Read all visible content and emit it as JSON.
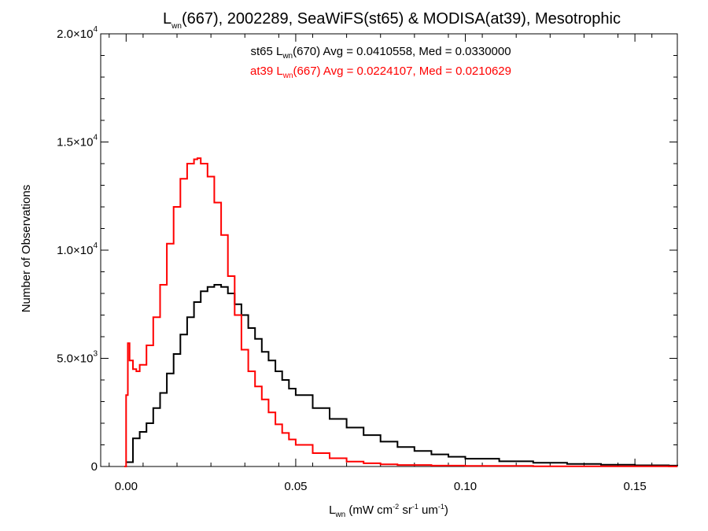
{
  "chart_data": {
    "type": "line",
    "title": {
      "main": "L",
      "main_sub": "wn",
      "rest": "(667), 2002289, SeaWiFS(st65) & MODISA(at39), Mesotrophic"
    },
    "annotations": [
      {
        "prefix": "st65 L",
        "sub": "wn",
        "suffix": "(670) Avg = 0.0410558, Med = 0.0330000",
        "color": "#000000"
      },
      {
        "prefix": "at39 L",
        "sub": "wn",
        "suffix": "(667) Avg = 0.0224107, Med = 0.0210629",
        "color": "#ff0000"
      }
    ],
    "xlabel": {
      "l": "L",
      "l_sub": "wn",
      "units_a": " (mW cm",
      "sup1": "-2",
      "units_b": " sr",
      "sup2": "-1",
      "units_c": " um",
      "sup3": "-1",
      "units_d": ")"
    },
    "ylabel": "Number of Observations",
    "xlim": [
      -0.0075,
      0.1625
    ],
    "ylim": [
      0,
      20000
    ],
    "x_ticks": [
      {
        "value": 0.0,
        "label": "0.00"
      },
      {
        "value": 0.05,
        "label": "0.05"
      },
      {
        "value": 0.1,
        "label": "0.10"
      },
      {
        "value": 0.15,
        "label": "0.15"
      }
    ],
    "y_ticks": [
      {
        "value": 0,
        "mant": "0",
        "exp": ""
      },
      {
        "value": 5000,
        "mant": "5.0×10",
        "exp": "3"
      },
      {
        "value": 10000,
        "mant": "1.0×10",
        "exp": "4"
      },
      {
        "value": 15000,
        "mant": "1.5×10",
        "exp": "4"
      },
      {
        "value": 20000,
        "mant": "2.0×10",
        "exp": "4"
      }
    ],
    "grid": false,
    "series": [
      {
        "name": "st65",
        "color": "#000000",
        "x": [
          0.0,
          0.002,
          0.004,
          0.006,
          0.008,
          0.01,
          0.012,
          0.014,
          0.016,
          0.018,
          0.02,
          0.022,
          0.024,
          0.026,
          0.028,
          0.03,
          0.032,
          0.034,
          0.036,
          0.038,
          0.04,
          0.042,
          0.044,
          0.046,
          0.048,
          0.05,
          0.055,
          0.06,
          0.065,
          0.07,
          0.075,
          0.08,
          0.085,
          0.09,
          0.095,
          0.1,
          0.11,
          0.12,
          0.13,
          0.14,
          0.15,
          0.16,
          0.1625
        ],
        "y": [
          200,
          1300,
          1600,
          2000,
          2700,
          3400,
          4300,
          5200,
          6100,
          6900,
          7600,
          8100,
          8300,
          8400,
          8300,
          8000,
          7500,
          7000,
          6400,
          5900,
          5300,
          4900,
          4400,
          4000,
          3600,
          3300,
          2700,
          2200,
          1800,
          1450,
          1150,
          900,
          720,
          560,
          450,
          360,
          240,
          170,
          120,
          80,
          55,
          40,
          35
        ]
      },
      {
        "name": "at39",
        "color": "#ff0000",
        "x": [
          -0.0005,
          0.0,
          0.0005,
          0.001,
          0.002,
          0.003,
          0.004,
          0.006,
          0.008,
          0.01,
          0.012,
          0.014,
          0.016,
          0.018,
          0.02,
          0.021,
          0.022,
          0.024,
          0.026,
          0.028,
          0.03,
          0.032,
          0.034,
          0.036,
          0.038,
          0.04,
          0.042,
          0.044,
          0.046,
          0.048,
          0.05,
          0.055,
          0.06,
          0.065,
          0.07,
          0.075,
          0.08,
          0.09,
          0.1,
          0.12,
          0.14,
          0.16,
          0.1625
        ],
        "y": [
          0,
          3300,
          5700,
          4900,
          4500,
          4400,
          4700,
          5600,
          6900,
          8400,
          10300,
          12000,
          13300,
          14000,
          14200,
          14250,
          14000,
          13400,
          12200,
          10700,
          8800,
          7000,
          5400,
          4400,
          3700,
          3100,
          2500,
          1950,
          1550,
          1250,
          1000,
          620,
          380,
          230,
          150,
          100,
          70,
          40,
          25,
          12,
          6,
          3,
          2
        ]
      }
    ]
  }
}
